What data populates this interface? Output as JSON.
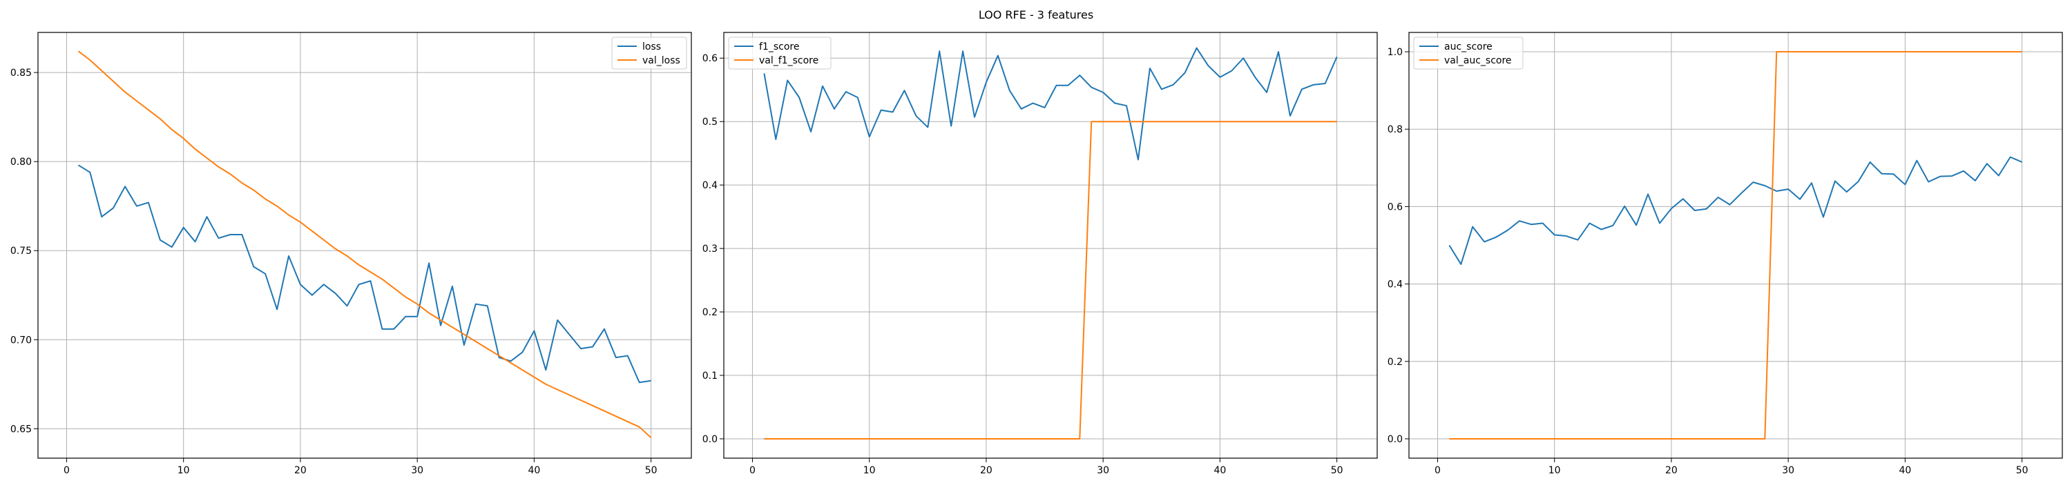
{
  "figure": {
    "title": "LOO RFE - 3 features"
  },
  "colors": {
    "series1": "#1f77b4",
    "series2": "#ff7f0e",
    "grid": "#b0b0b0",
    "axis": "#000000"
  },
  "chart_data": [
    {
      "type": "line",
      "title": "",
      "xlabel": "",
      "ylabel": "",
      "xlim": [
        -2.45,
        53.45
      ],
      "ylim": [
        0.6335,
        0.8725
      ],
      "xticks": [
        0,
        10,
        20,
        30,
        40,
        50
      ],
      "yticks": [
        0.65,
        0.7,
        0.75,
        0.8,
        0.85
      ],
      "ytick_labels": [
        "0.65",
        "0.70",
        "0.75",
        "0.80",
        "0.85"
      ],
      "grid": true,
      "legend_position": "upper right",
      "x": [
        1,
        2,
        3,
        4,
        5,
        6,
        7,
        8,
        9,
        10,
        11,
        12,
        13,
        14,
        15,
        16,
        17,
        18,
        19,
        20,
        21,
        22,
        23,
        24,
        25,
        26,
        27,
        28,
        29,
        30,
        31,
        32,
        33,
        34,
        35,
        36,
        37,
        38,
        39,
        40,
        41,
        42,
        43,
        44,
        45,
        46,
        47,
        48,
        49,
        50
      ],
      "series": [
        {
          "name": "loss",
          "color": "#1f77b4",
          "values": [
            0.798,
            0.794,
            0.769,
            0.774,
            0.786,
            0.775,
            0.777,
            0.756,
            0.752,
            0.763,
            0.755,
            0.769,
            0.757,
            0.759,
            0.759,
            0.741,
            0.737,
            0.717,
            0.747,
            0.731,
            0.725,
            0.731,
            0.726,
            0.719,
            0.731,
            0.733,
            0.706,
            0.706,
            0.713,
            0.713,
            0.743,
            0.708,
            0.73,
            0.697,
            0.72,
            0.719,
            0.69,
            0.688,
            0.693,
            0.705,
            0.683,
            0.711,
            0.703,
            0.695,
            0.696,
            0.706,
            0.69,
            0.691,
            0.676,
            0.677
          ]
        },
        {
          "name": "val_loss",
          "color": "#ff7f0e",
          "values": [
            0.862,
            0.857,
            0.851,
            0.845,
            0.839,
            0.834,
            0.829,
            0.824,
            0.818,
            0.813,
            0.807,
            0.802,
            0.797,
            0.793,
            0.788,
            0.784,
            0.779,
            0.775,
            0.77,
            0.766,
            0.761,
            0.756,
            0.751,
            0.747,
            0.742,
            0.738,
            0.734,
            0.729,
            0.724,
            0.72,
            0.715,
            0.711,
            0.707,
            0.703,
            0.699,
            0.695,
            0.691,
            0.687,
            0.683,
            0.679,
            0.675,
            0.672,
            0.669,
            0.666,
            0.663,
            0.66,
            0.657,
            0.654,
            0.651,
            0.645
          ]
        }
      ]
    },
    {
      "type": "line",
      "title": "",
      "xlabel": "",
      "ylabel": "",
      "xlim": [
        -2.45,
        53.45
      ],
      "ylim": [
        -0.0305,
        0.6405
      ],
      "xticks": [
        0,
        10,
        20,
        30,
        40,
        50
      ],
      "yticks": [
        0.0,
        0.1,
        0.2,
        0.3,
        0.4,
        0.5,
        0.6
      ],
      "ytick_labels": [
        "0.0",
        "0.1",
        "0.2",
        "0.3",
        "0.4",
        "0.5",
        "0.6"
      ],
      "grid": true,
      "legend_position": "upper left",
      "x": [
        1,
        2,
        3,
        4,
        5,
        6,
        7,
        8,
        9,
        10,
        11,
        12,
        13,
        14,
        15,
        16,
        17,
        18,
        19,
        20,
        21,
        22,
        23,
        24,
        25,
        26,
        27,
        28,
        29,
        30,
        31,
        32,
        33,
        34,
        35,
        36,
        37,
        38,
        39,
        40,
        41,
        42,
        43,
        44,
        45,
        46,
        47,
        48,
        49,
        50
      ],
      "series": [
        {
          "name": "f1_score",
          "color": "#1f77b4",
          "values": [
            0.576,
            0.472,
            0.565,
            0.538,
            0.484,
            0.556,
            0.52,
            0.547,
            0.538,
            0.476,
            0.518,
            0.515,
            0.549,
            0.509,
            0.491,
            0.611,
            0.493,
            0.611,
            0.507,
            0.562,
            0.604,
            0.549,
            0.52,
            0.529,
            0.522,
            0.557,
            0.557,
            0.573,
            0.554,
            0.546,
            0.529,
            0.525,
            0.44,
            0.584,
            0.551,
            0.558,
            0.577,
            0.616,
            0.588,
            0.57,
            0.58,
            0.6,
            0.57,
            0.546,
            0.61,
            0.509,
            0.551,
            0.558,
            0.56,
            0.602
          ]
        },
        {
          "name": "val_f1_score",
          "color": "#ff7f0e",
          "values": [
            0,
            0,
            0,
            0,
            0,
            0,
            0,
            0,
            0,
            0,
            0,
            0,
            0,
            0,
            0,
            0,
            0,
            0,
            0,
            0,
            0,
            0,
            0,
            0,
            0,
            0,
            0,
            0,
            0.5,
            0.5,
            0.5,
            0.5,
            0.5,
            0.5,
            0.5,
            0.5,
            0.5,
            0.5,
            0.5,
            0.5,
            0.5,
            0.5,
            0.5,
            0.5,
            0.5,
            0.5,
            0.5,
            0.5,
            0.5,
            0.5
          ]
        }
      ]
    },
    {
      "type": "line",
      "title": "",
      "xlabel": "",
      "ylabel": "",
      "xlim": [
        -2.45,
        53.45
      ],
      "ylim": [
        -0.05,
        1.05
      ],
      "xticks": [
        0,
        10,
        20,
        30,
        40,
        50
      ],
      "yticks": [
        0.0,
        0.2,
        0.4,
        0.6,
        0.8,
        1.0
      ],
      "ytick_labels": [
        "0.0",
        "0.2",
        "0.4",
        "0.6",
        "0.8",
        "1.0"
      ],
      "grid": true,
      "legend_position": "upper left",
      "x": [
        1,
        2,
        3,
        4,
        5,
        6,
        7,
        8,
        9,
        10,
        11,
        12,
        13,
        14,
        15,
        16,
        17,
        18,
        19,
        20,
        21,
        22,
        23,
        24,
        25,
        26,
        27,
        28,
        29,
        30,
        31,
        32,
        33,
        34,
        35,
        36,
        37,
        38,
        39,
        40,
        41,
        42,
        43,
        44,
        45,
        46,
        47,
        48,
        49,
        50
      ],
      "series": [
        {
          "name": "auc_score",
          "color": "#1f77b4",
          "values": [
            0.5,
            0.451,
            0.548,
            0.509,
            0.521,
            0.539,
            0.563,
            0.554,
            0.557,
            0.527,
            0.524,
            0.514,
            0.557,
            0.541,
            0.551,
            0.601,
            0.552,
            0.632,
            0.557,
            0.595,
            0.62,
            0.59,
            0.594,
            0.624,
            0.605,
            0.635,
            0.663,
            0.654,
            0.64,
            0.645,
            0.619,
            0.661,
            0.573,
            0.666,
            0.638,
            0.665,
            0.715,
            0.685,
            0.684,
            0.657,
            0.719,
            0.664,
            0.678,
            0.679,
            0.692,
            0.667,
            0.711,
            0.68,
            0.728,
            0.715
          ]
        },
        {
          "name": "val_auc_score",
          "color": "#ff7f0e",
          "values": [
            0,
            0,
            0,
            0,
            0,
            0,
            0,
            0,
            0,
            0,
            0,
            0,
            0,
            0,
            0,
            0,
            0,
            0,
            0,
            0,
            0,
            0,
            0,
            0,
            0,
            0,
            0,
            0,
            1,
            1,
            1,
            1,
            1,
            1,
            1,
            1,
            1,
            1,
            1,
            1,
            1,
            1,
            1,
            1,
            1,
            1,
            1,
            1,
            1,
            1
          ]
        }
      ]
    }
  ]
}
